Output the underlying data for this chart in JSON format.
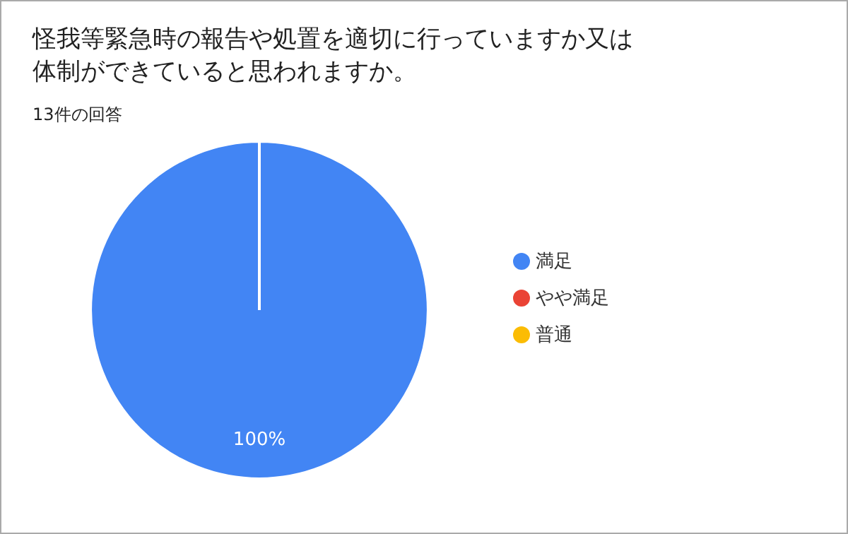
{
  "chart_data": {
    "type": "pie",
    "title": "怪我等緊急時の報告や処置を適切に行っていますか又は体制ができていると思われますか。",
    "subtitle": "13件の回答",
    "categories": [
      "満足",
      "やや満足",
      "普通"
    ],
    "values": [
      100,
      0,
      0
    ],
    "colors": [
      "#4285f4",
      "#ea4335",
      "#fbbc04"
    ],
    "value_labels": [
      "100%",
      null,
      null
    ],
    "legend": "right"
  }
}
